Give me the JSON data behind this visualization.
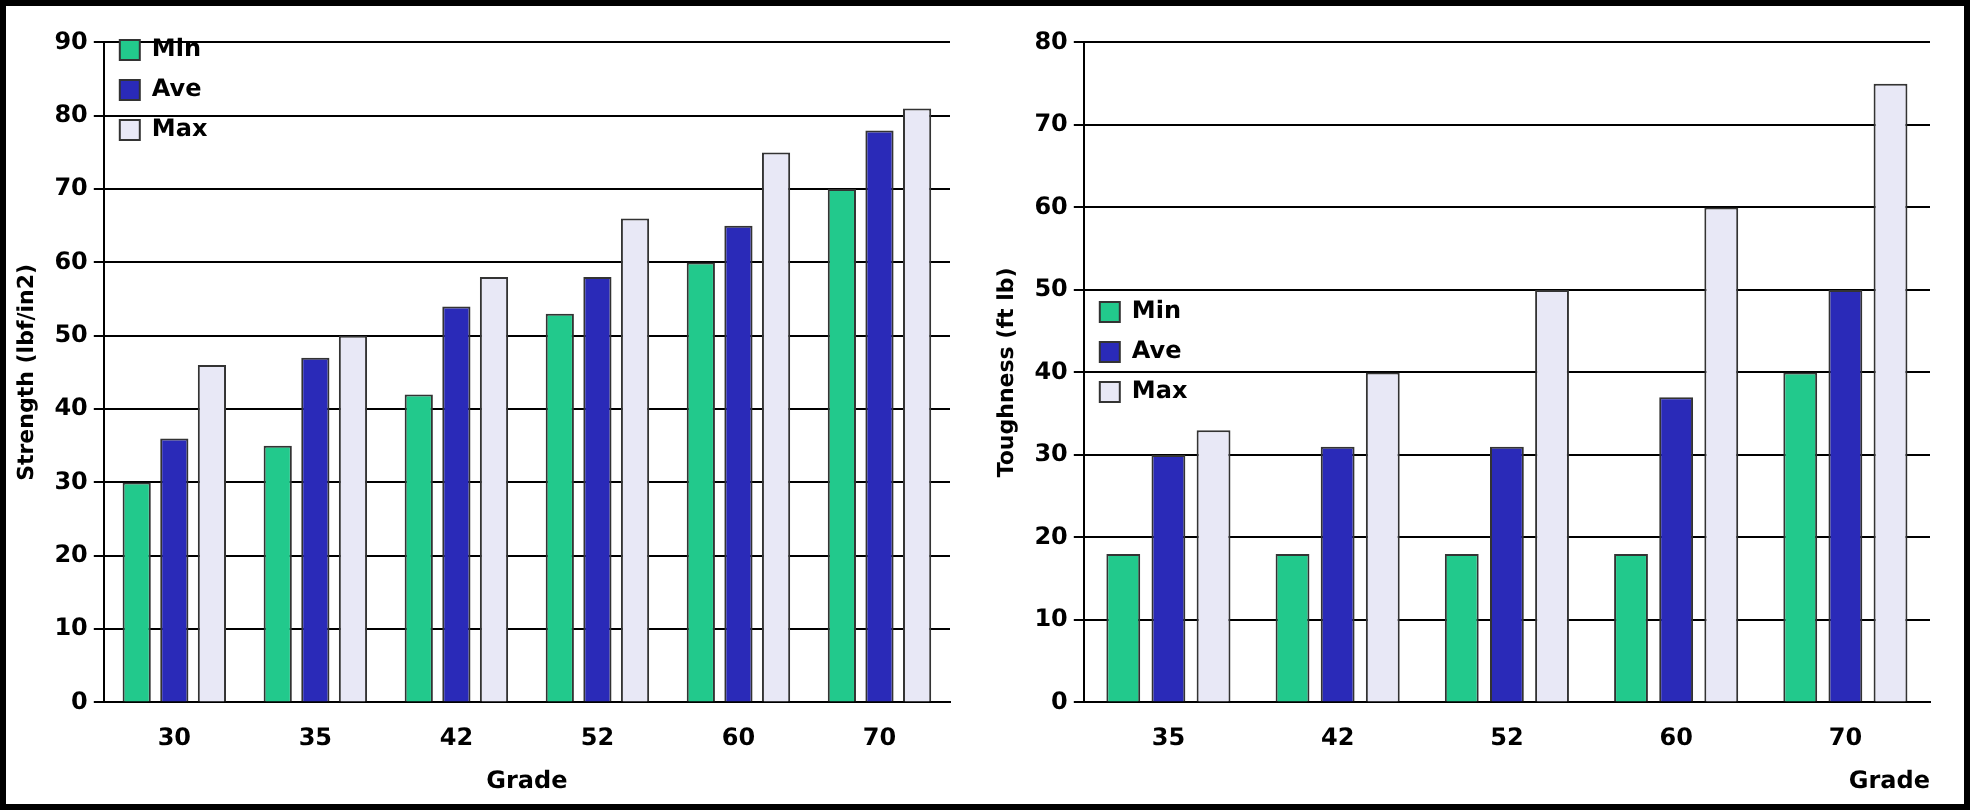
{
  "chart_data": [
    {
      "type": "bar",
      "xlabel": "Grade",
      "ylabel": "Strength (lbf/in2)",
      "categories": [
        "30",
        "35",
        "42",
        "52",
        "60",
        "70"
      ],
      "series": [
        {
          "name": "Min",
          "color": "#22c98c",
          "values": [
            30,
            35,
            42,
            53,
            60,
            70
          ]
        },
        {
          "name": "Ave",
          "color": "#2a2ab8",
          "values": [
            36,
            47,
            54,
            58,
            65,
            78
          ]
        },
        {
          "name": "Max",
          "color": "#e8e8f6",
          "values": [
            46,
            50,
            58,
            66,
            75,
            81
          ]
        }
      ],
      "ylim": [
        0,
        90
      ],
      "yticks": [
        0,
        10,
        20,
        30,
        40,
        50,
        60,
        70,
        80,
        90
      ],
      "grid": "y",
      "legend": "top left"
    },
    {
      "type": "bar",
      "xlabel": "Grade",
      "ylabel": "Toughness (ft lb)",
      "categories": [
        "35",
        "42",
        "52",
        "60",
        "70"
      ],
      "series": [
        {
          "name": "Min",
          "color": "#22c98c",
          "values": [
            18,
            18,
            18,
            18,
            40
          ]
        },
        {
          "name": "Ave",
          "color": "#2a2ab8",
          "values": [
            30,
            31,
            31,
            37,
            50
          ]
        },
        {
          "name": "Max",
          "color": "#e8e8f6",
          "values": [
            33,
            40,
            50,
            60,
            75
          ]
        }
      ],
      "ylim": [
        0,
        80
      ],
      "yticks": [
        0,
        10,
        20,
        30,
        40,
        50,
        60,
        70,
        80
      ],
      "grid": "y",
      "legend": "top"
    }
  ]
}
